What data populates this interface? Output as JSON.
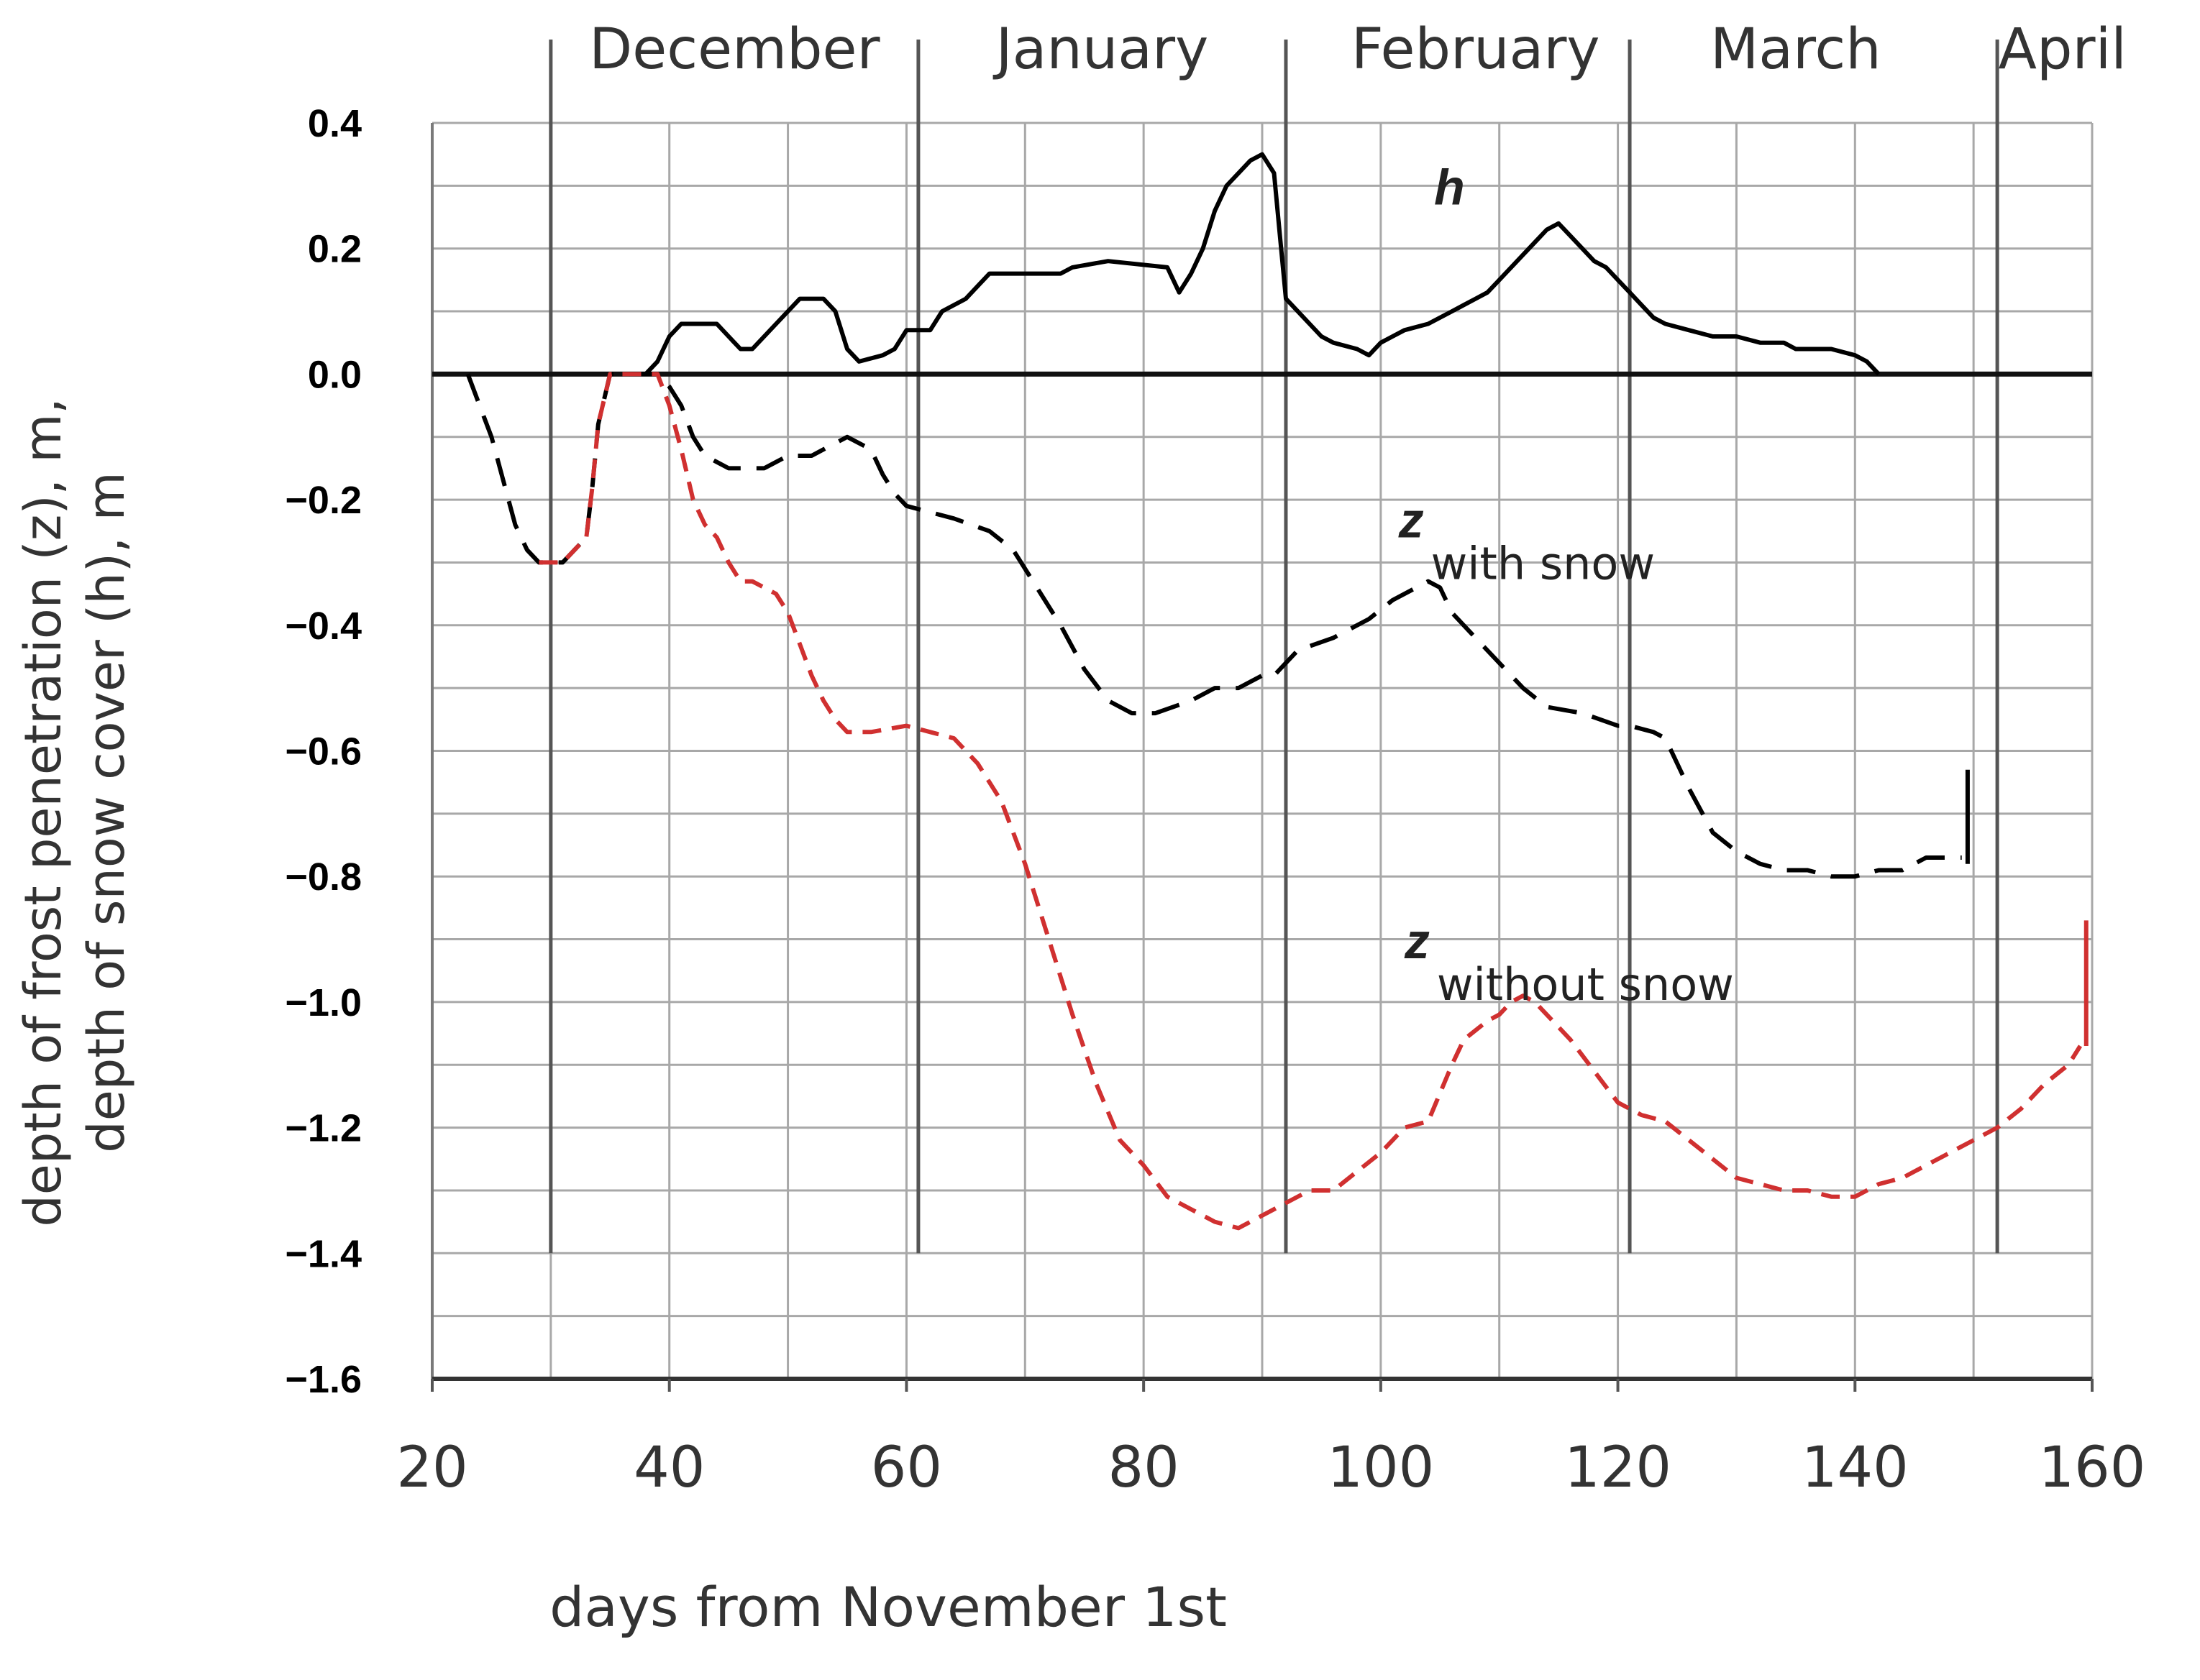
{
  "chart_data": {
    "type": "line",
    "xlabel": "days from November 1st",
    "ylabel_line1": "depth of frost penetration (z), m,",
    "ylabel_line2": "depth of snow cover (h), m",
    "xlim": [
      20,
      160
    ],
    "ylim": [
      -1.6,
      0.4
    ],
    "x_ticks": [
      20,
      40,
      60,
      80,
      100,
      120,
      140,
      160
    ],
    "x_tick_labels": [
      "20",
      "40",
      "60",
      "80",
      "100",
      "120",
      "140",
      "160"
    ],
    "y_ticks": [
      0.4,
      0.2,
      0.0,
      -0.2,
      -0.4,
      -0.6,
      -0.8,
      -1.0,
      -1.2,
      -1.4,
      -1.6
    ],
    "y_tick_labels": [
      "0.4",
      "0.2",
      "0.0",
      "−0.2",
      "−0.4",
      "−0.6",
      "−0.8",
      "−1.0",
      "−1.2",
      "−1.4",
      "−1.6"
    ],
    "grid": true,
    "month_boundaries": [
      30,
      61,
      92,
      121,
      152
    ],
    "months": [
      {
        "label": "December",
        "x": 45.5
      },
      {
        "label": "January",
        "x": 76.5
      },
      {
        "label": "February",
        "x": 108
      },
      {
        "label": "March",
        "x": 135
      },
      {
        "label": "April",
        "x": 157.5
      }
    ],
    "series": [
      {
        "name": "h",
        "color": "#000000",
        "style": "solid",
        "label_x": 104.5,
        "label_y": 0.27,
        "points": [
          [
            38,
            0.0
          ],
          [
            39,
            0.02
          ],
          [
            40,
            0.06
          ],
          [
            41,
            0.08
          ],
          [
            43,
            0.08
          ],
          [
            44,
            0.08
          ],
          [
            45,
            0.06
          ],
          [
            46,
            0.04
          ],
          [
            47,
            0.04
          ],
          [
            48,
            0.06
          ],
          [
            49,
            0.08
          ],
          [
            50,
            0.1
          ],
          [
            51,
            0.12
          ],
          [
            53,
            0.12
          ],
          [
            54,
            0.1
          ],
          [
            55,
            0.04
          ],
          [
            56,
            0.02
          ],
          [
            58,
            0.03
          ],
          [
            59,
            0.04
          ],
          [
            60,
            0.07
          ],
          [
            62,
            0.07
          ],
          [
            63,
            0.1
          ],
          [
            65,
            0.12
          ],
          [
            66,
            0.14
          ],
          [
            67,
            0.16
          ],
          [
            70,
            0.16
          ],
          [
            73,
            0.16
          ],
          [
            74,
            0.17
          ],
          [
            77,
            0.18
          ],
          [
            82,
            0.17
          ],
          [
            83,
            0.13
          ],
          [
            84,
            0.16
          ],
          [
            85,
            0.2
          ],
          [
            86,
            0.26
          ],
          [
            87,
            0.3
          ],
          [
            88,
            0.32
          ],
          [
            89,
            0.34
          ],
          [
            90,
            0.35
          ],
          [
            91,
            0.32
          ],
          [
            91.5,
            0.22
          ],
          [
            92,
            0.12
          ],
          [
            93,
            0.1
          ],
          [
            94,
            0.08
          ],
          [
            95,
            0.06
          ],
          [
            96,
            0.05
          ],
          [
            98,
            0.04
          ],
          [
            99,
            0.03
          ],
          [
            100,
            0.05
          ],
          [
            101,
            0.06
          ],
          [
            102,
            0.07
          ],
          [
            104,
            0.08
          ],
          [
            106,
            0.1
          ],
          [
            108,
            0.12
          ],
          [
            109,
            0.13
          ],
          [
            110,
            0.15
          ],
          [
            111,
            0.17
          ],
          [
            112,
            0.19
          ],
          [
            113,
            0.21
          ],
          [
            114,
            0.23
          ],
          [
            115,
            0.24
          ],
          [
            116,
            0.22
          ],
          [
            117,
            0.2
          ],
          [
            118,
            0.18
          ],
          [
            119,
            0.17
          ],
          [
            120,
            0.15
          ],
          [
            121,
            0.13
          ],
          [
            122,
            0.11
          ],
          [
            123,
            0.09
          ],
          [
            124,
            0.08
          ],
          [
            126,
            0.07
          ],
          [
            128,
            0.06
          ],
          [
            130,
            0.06
          ],
          [
            132,
            0.05
          ],
          [
            134,
            0.05
          ],
          [
            135,
            0.04
          ],
          [
            136,
            0.04
          ],
          [
            138,
            0.04
          ],
          [
            140,
            0.03
          ],
          [
            141,
            0.02
          ],
          [
            142,
            0.0
          ]
        ]
      },
      {
        "name": "z",
        "subscript": "with snow",
        "color": "#000000",
        "style": "dashed",
        "label_x": 101.5,
        "label_y": -0.26,
        "points": [
          [
            23,
            0.0
          ],
          [
            24,
            -0.05
          ],
          [
            25,
            -0.1
          ],
          [
            26,
            -0.17
          ],
          [
            27,
            -0.24
          ],
          [
            28,
            -0.28
          ],
          [
            29,
            -0.3
          ],
          [
            30,
            -0.3
          ],
          [
            31,
            -0.3
          ],
          [
            32,
            -0.28
          ],
          [
            33,
            -0.26
          ],
          [
            33.5,
            -0.18
          ],
          [
            34,
            -0.08
          ],
          [
            35,
            0.0
          ],
          [
            38,
            0.0
          ],
          [
            39,
            0.0
          ],
          [
            40,
            -0.02
          ],
          [
            41,
            -0.05
          ],
          [
            42,
            -0.1
          ],
          [
            43,
            -0.13
          ],
          [
            44,
            -0.14
          ],
          [
            45,
            -0.15
          ],
          [
            48,
            -0.15
          ],
          [
            49,
            -0.14
          ],
          [
            50,
            -0.13
          ],
          [
            52,
            -0.13
          ],
          [
            53,
            -0.12
          ],
          [
            54,
            -0.11
          ],
          [
            55,
            -0.1
          ],
          [
            57,
            -0.12
          ],
          [
            58,
            -0.16
          ],
          [
            59,
            -0.19
          ],
          [
            60,
            -0.21
          ],
          [
            62,
            -0.22
          ],
          [
            64,
            -0.23
          ],
          [
            67,
            -0.25
          ],
          [
            69,
            -0.28
          ],
          [
            71,
            -0.34
          ],
          [
            73,
            -0.4
          ],
          [
            75,
            -0.47
          ],
          [
            77,
            -0.52
          ],
          [
            79,
            -0.54
          ],
          [
            81,
            -0.54
          ],
          [
            84,
            -0.52
          ],
          [
            86,
            -0.5
          ],
          [
            88,
            -0.5
          ],
          [
            90,
            -0.48
          ],
          [
            91,
            -0.48
          ],
          [
            93,
            -0.44
          ],
          [
            96,
            -0.42
          ],
          [
            99,
            -0.39
          ],
          [
            101,
            -0.36
          ],
          [
            103,
            -0.34
          ],
          [
            104,
            -0.33
          ],
          [
            105,
            -0.34
          ],
          [
            106,
            -0.38
          ],
          [
            108,
            -0.42
          ],
          [
            110,
            -0.46
          ],
          [
            112,
            -0.5
          ],
          [
            114,
            -0.53
          ],
          [
            117,
            -0.54
          ],
          [
            120,
            -0.56
          ],
          [
            121,
            -0.56
          ],
          [
            123,
            -0.57
          ],
          [
            124,
            -0.58
          ],
          [
            126,
            -0.66
          ],
          [
            128,
            -0.73
          ],
          [
            130,
            -0.76
          ],
          [
            132,
            -0.78
          ],
          [
            134,
            -0.79
          ],
          [
            136,
            -0.79
          ],
          [
            138,
            -0.8
          ],
          [
            140,
            -0.8
          ],
          [
            142,
            -0.79
          ],
          [
            144,
            -0.79
          ],
          [
            146,
            -0.77
          ],
          [
            148,
            -0.77
          ],
          [
            149,
            -0.77
          ]
        ]
      },
      {
        "name": "z",
        "subscript": "without snow",
        "color": "#d03030",
        "style": "dashed",
        "label_x": 102,
        "label_y": -0.93,
        "points": [
          [
            29,
            -0.3
          ],
          [
            30,
            -0.3
          ],
          [
            31,
            -0.3
          ],
          [
            32,
            -0.28
          ],
          [
            33,
            -0.26
          ],
          [
            33.5,
            -0.18
          ],
          [
            34,
            -0.08
          ],
          [
            35,
            0.0
          ],
          [
            38,
            0.0
          ],
          [
            39,
            0.0
          ],
          [
            40,
            -0.05
          ],
          [
            41,
            -0.12
          ],
          [
            42,
            -0.2
          ],
          [
            43,
            -0.24
          ],
          [
            44,
            -0.26
          ],
          [
            45,
            -0.3
          ],
          [
            46,
            -0.33
          ],
          [
            47,
            -0.33
          ],
          [
            48,
            -0.34
          ],
          [
            49,
            -0.35
          ],
          [
            50,
            -0.38
          ],
          [
            51,
            -0.43
          ],
          [
            52,
            -0.48
          ],
          [
            53,
            -0.52
          ],
          [
            54,
            -0.55
          ],
          [
            55,
            -0.57
          ],
          [
            57,
            -0.57
          ],
          [
            60,
            -0.56
          ],
          [
            62,
            -0.57
          ],
          [
            64,
            -0.58
          ],
          [
            66,
            -0.62
          ],
          [
            68,
            -0.68
          ],
          [
            70,
            -0.78
          ],
          [
            72,
            -0.9
          ],
          [
            74,
            -1.02
          ],
          [
            76,
            -1.13
          ],
          [
            78,
            -1.22
          ],
          [
            80,
            -1.26
          ],
          [
            82,
            -1.31
          ],
          [
            84,
            -1.33
          ],
          [
            86,
            -1.35
          ],
          [
            88,
            -1.36
          ],
          [
            90,
            -1.34
          ],
          [
            92,
            -1.32
          ],
          [
            94,
            -1.3
          ],
          [
            96,
            -1.3
          ],
          [
            98,
            -1.27
          ],
          [
            100,
            -1.24
          ],
          [
            102,
            -1.2
          ],
          [
            104,
            -1.19
          ],
          [
            106,
            -1.1
          ],
          [
            107,
            -1.06
          ],
          [
            109,
            -1.03
          ],
          [
            110,
            -1.02
          ],
          [
            111,
            -1.0
          ],
          [
            112,
            -0.99
          ],
          [
            113,
            -1.0
          ],
          [
            114,
            -1.02
          ],
          [
            116,
            -1.06
          ],
          [
            118,
            -1.11
          ],
          [
            120,
            -1.16
          ],
          [
            122,
            -1.18
          ],
          [
            124,
            -1.19
          ],
          [
            126,
            -1.22
          ],
          [
            128,
            -1.25
          ],
          [
            130,
            -1.28
          ],
          [
            132,
            -1.29
          ],
          [
            134,
            -1.3
          ],
          [
            136,
            -1.3
          ],
          [
            138,
            -1.31
          ],
          [
            140,
            -1.31
          ],
          [
            142,
            -1.29
          ],
          [
            144,
            -1.28
          ],
          [
            146,
            -1.26
          ],
          [
            148,
            -1.24
          ],
          [
            150,
            -1.22
          ],
          [
            152,
            -1.2
          ],
          [
            154,
            -1.17
          ],
          [
            156,
            -1.13
          ],
          [
            158,
            -1.1
          ],
          [
            159,
            -1.07
          ]
        ]
      }
    ]
  }
}
